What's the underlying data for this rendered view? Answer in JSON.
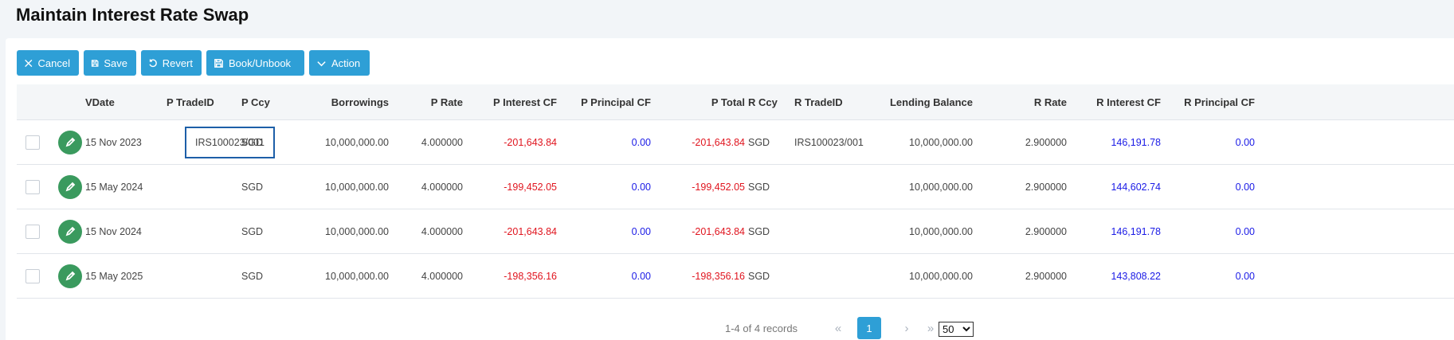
{
  "page": {
    "title": "Maintain Interest Rate Swap"
  },
  "toolbar": {
    "cancel_label": "Cancel",
    "save_label": "Save",
    "revert_label": "Revert",
    "book_label": "Book/Unbook",
    "action_label": "Action"
  },
  "grid": {
    "columns": [
      "VDate",
      "P TradeID",
      "P Ccy",
      "Borrowings",
      "P Rate",
      "P Interest CF",
      "P Principal CF",
      "P Total",
      "R Ccy",
      "R TradeID",
      "Lending Balance",
      "R Rate",
      "R Interest CF",
      "R Principal CF"
    ],
    "rows": [
      {
        "vdate": "15 Nov 2023",
        "p_tradeid": "IRS100023/001",
        "p_ccy": "SGD",
        "borrowings": "10,000,000.00",
        "p_rate": "4.000000",
        "p_interest_cf": "-201,643.84",
        "p_principal_cf": "0.00",
        "p_total": "-201,643.84",
        "r_ccy": "SGD",
        "r_tradeid": "IRS100023/001",
        "lending_balance": "10,000,000.00",
        "r_rate": "2.900000",
        "r_interest_cf": "146,191.78",
        "r_principal_cf": "0.00"
      },
      {
        "vdate": "15 May 2024",
        "p_tradeid": "",
        "p_ccy": "SGD",
        "borrowings": "10,000,000.00",
        "p_rate": "4.000000",
        "p_interest_cf": "-199,452.05",
        "p_principal_cf": "0.00",
        "p_total": "-199,452.05",
        "r_ccy": "SGD",
        "r_tradeid": "",
        "lending_balance": "10,000,000.00",
        "r_rate": "2.900000",
        "r_interest_cf": "144,602.74",
        "r_principal_cf": "0.00"
      },
      {
        "vdate": "15 Nov 2024",
        "p_tradeid": "",
        "p_ccy": "SGD",
        "borrowings": "10,000,000.00",
        "p_rate": "4.000000",
        "p_interest_cf": "-201,643.84",
        "p_principal_cf": "0.00",
        "p_total": "-201,643.84",
        "r_ccy": "SGD",
        "r_tradeid": "",
        "lending_balance": "10,000,000.00",
        "r_rate": "2.900000",
        "r_interest_cf": "146,191.78",
        "r_principal_cf": "0.00"
      },
      {
        "vdate": "15 May 2025",
        "p_tradeid": "",
        "p_ccy": "SGD",
        "borrowings": "10,000,000.00",
        "p_rate": "4.000000",
        "p_interest_cf": "-198,356.16",
        "p_principal_cf": "0.00",
        "p_total": "-198,356.16",
        "r_ccy": "SGD",
        "r_tradeid": "",
        "lending_balance": "10,000,000.00",
        "r_rate": "2.900000",
        "r_interest_cf": "143,808.22",
        "r_principal_cf": "0.00"
      }
    ]
  },
  "pager": {
    "info": "1-4 of 4 records",
    "first": "«",
    "prev": "‹",
    "current_page": "1",
    "next": "›",
    "last": "»",
    "page_size": "50"
  },
  "colors": {
    "accent": "#2e9fd6",
    "edit": "#3a9a5e",
    "negative": "#e0141e",
    "positive": "#1a1ae6"
  },
  "icons": {
    "cancel": "close-icon",
    "save": "save-icon",
    "revert": "undo-icon",
    "book": "save-icon",
    "action": "chevron-down-icon",
    "edit": "pencil-icon"
  }
}
